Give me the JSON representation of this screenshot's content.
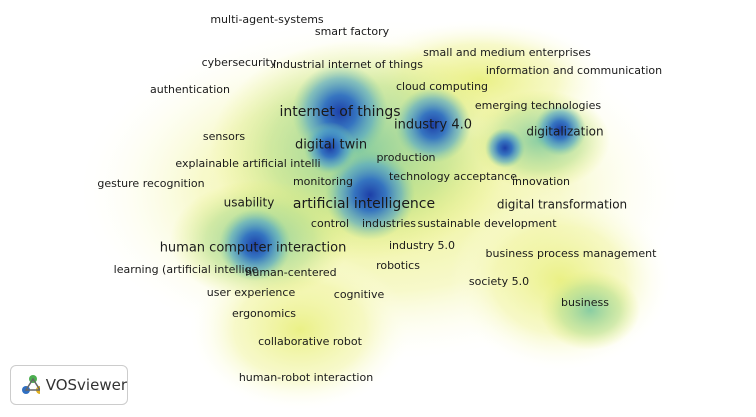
{
  "terms": [
    "multi-agent-systems",
    "smart factory",
    "small and medium enterprises",
    "cybersecurity",
    "industrial internet of things",
    "information and communication",
    "authentication",
    "cloud computing",
    "internet of things",
    "emerging technologies",
    "industry 4.0",
    "digitalization",
    "sensors",
    "digital twin",
    "production",
    "explainable artificial intelli",
    "technology acceptance",
    "monitoring",
    "gesture recognition",
    "innovation",
    "artificial intelligence",
    "usability",
    "digital transformation",
    "control",
    "industries",
    "sustainable development",
    "industry 5.0",
    "human computer interaction",
    "business process management",
    "learning (artificial intellige",
    "human-centered",
    "robotics",
    "society 5.0",
    "user experience",
    "cognitive",
    "business",
    "ergonomics",
    "collaborative robot",
    "human-robot interaction"
  ],
  "logo": "VOSviewer"
}
